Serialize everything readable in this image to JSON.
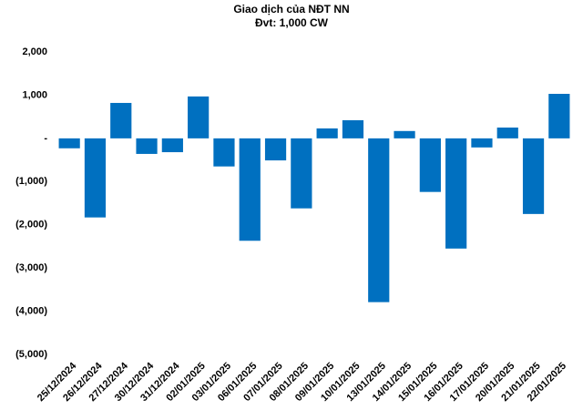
{
  "chart_data": {
    "type": "bar",
    "title": "Giao dịch của NĐT NN",
    "subtitle": "Đvt: 1,000 CW",
    "categories": [
      "25/12/2024",
      "26/12/2024",
      "27/12/2024",
      "30/12/2024",
      "31/12/2024",
      "02/01/2025",
      "03/01/2025",
      "06/01/2025",
      "07/01/2025",
      "08/01/2025",
      "09/01/2025",
      "10/01/2025",
      "13/01/2025",
      "14/01/2025",
      "15/01/2025",
      "16/01/2025",
      "17/01/2025",
      "20/01/2025",
      "21/01/2025",
      "22/01/2025"
    ],
    "values": [
      -230,
      -1830,
      820,
      -360,
      -320,
      970,
      -650,
      -2370,
      -510,
      -1620,
      230,
      420,
      -3790,
      170,
      -1240,
      -2550,
      -210,
      250,
      -1750,
      1030
    ],
    "color": "#0070c0",
    "ylim": [
      -5000,
      2000
    ],
    "yticks": [
      {
        "value": 2000,
        "label": "2,000"
      },
      {
        "value": 1000,
        "label": "1,000"
      },
      {
        "value": 0,
        "label": "-"
      },
      {
        "value": -1000,
        "label": "(1,000)"
      },
      {
        "value": -2000,
        "label": "(2,000)"
      },
      {
        "value": -3000,
        "label": "(3,000)"
      },
      {
        "value": -4000,
        "label": "(4,000)"
      },
      {
        "value": -5000,
        "label": "(5,000)"
      }
    ],
    "grid": false
  }
}
